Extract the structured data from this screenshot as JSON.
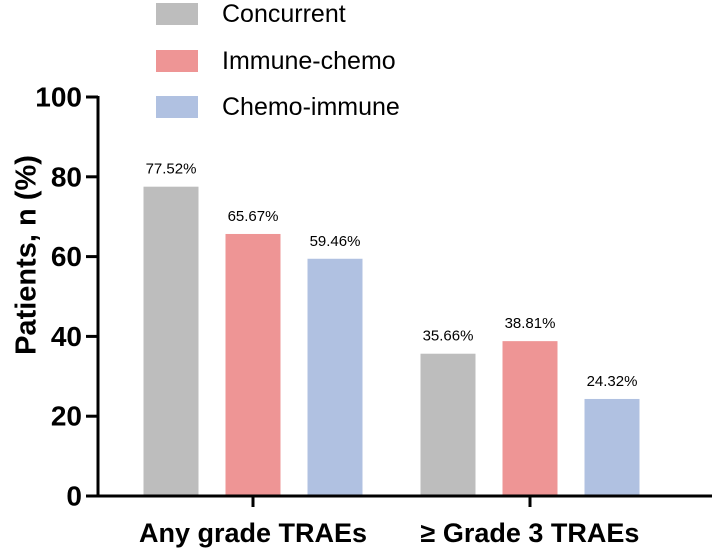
{
  "chart_data": {
    "type": "bar",
    "title": "",
    "xlabel": "",
    "ylabel": "Patients, n (%)",
    "ylim": [
      0,
      100
    ],
    "yticks": [
      0,
      20,
      40,
      60,
      80,
      100
    ],
    "legend_position": "top",
    "categories": [
      "Any grade TRAEs",
      "≥ Grade 3 TRAEs"
    ],
    "series": [
      {
        "name": "Concurrent",
        "color": "#BDBDBD",
        "values": [
          77.52,
          35.66
        ],
        "labels": [
          "77.52%",
          "35.66%"
        ]
      },
      {
        "name": "Immune-chemo",
        "color": "#EE9595",
        "values": [
          65.67,
          38.81
        ],
        "labels": [
          "65.67%",
          "38.81%"
        ]
      },
      {
        "name": "Chemo-immune",
        "color": "#B0C1E1",
        "values": [
          59.46,
          24.32
        ],
        "labels": [
          "59.46%",
          "24.32%"
        ]
      }
    ]
  }
}
